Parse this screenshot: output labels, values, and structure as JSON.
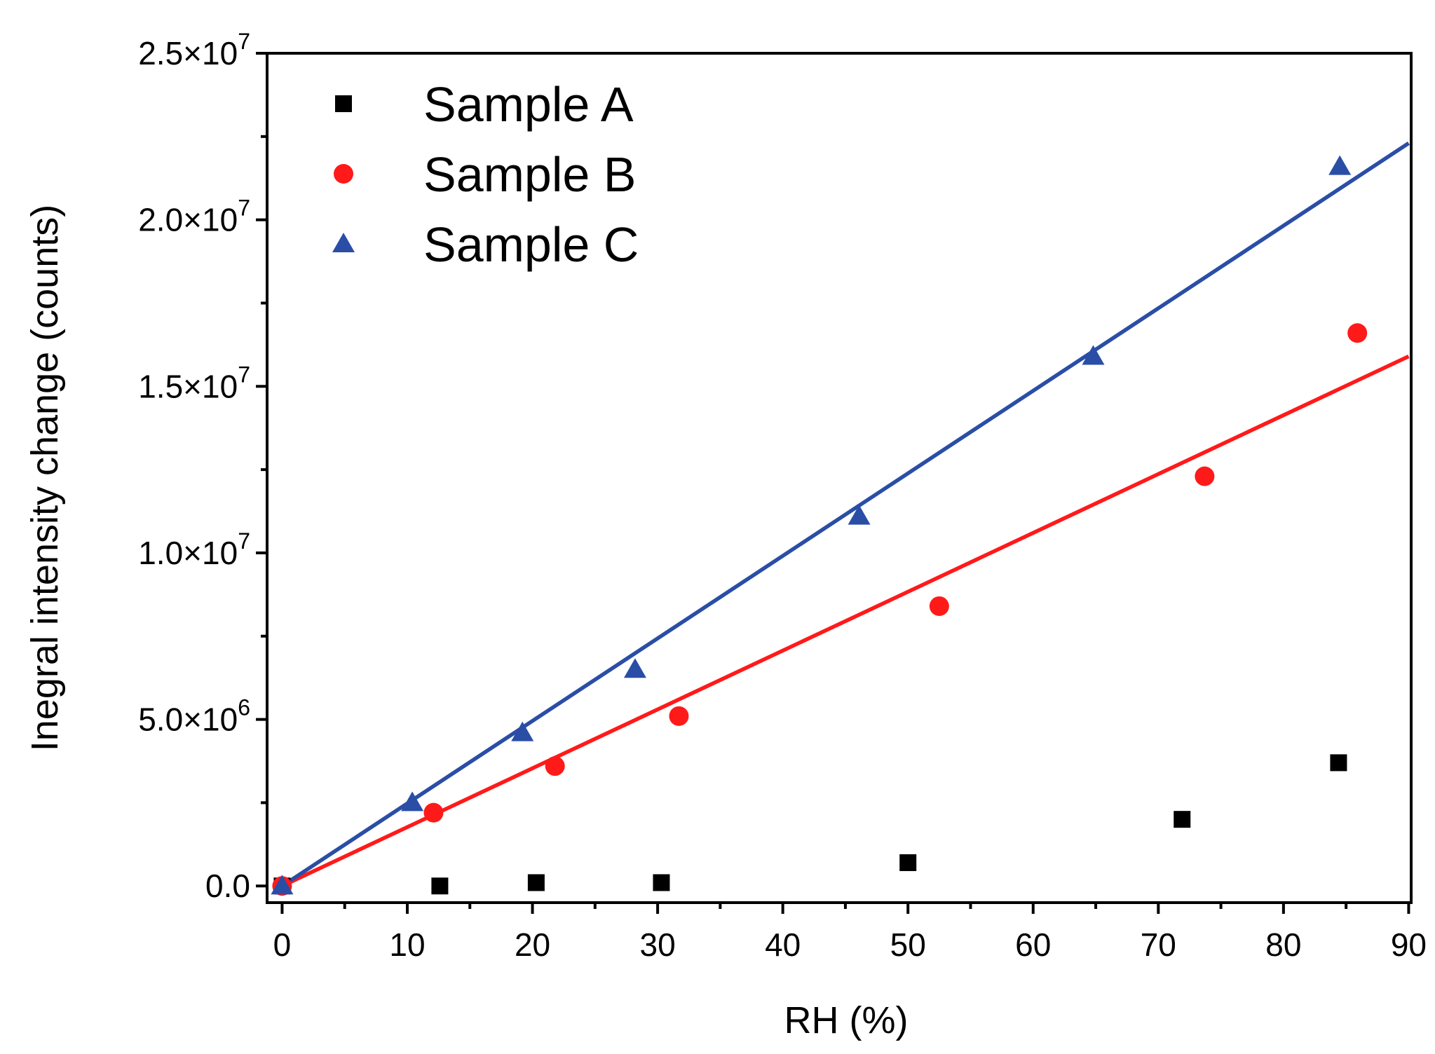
{
  "chart_data": {
    "type": "scatter",
    "title": "",
    "xlabel": "RH (%)",
    "ylabel": "Inegral intensity change (counts)",
    "xlim": [
      -1.2,
      90.2
    ],
    "ylim": [
      -500000,
      25000000
    ],
    "x_ticks": [
      0,
      10,
      20,
      30,
      40,
      50,
      60,
      70,
      80,
      90
    ],
    "x_tick_labels": [
      "0",
      "10",
      "20",
      "30",
      "40",
      "50",
      "60",
      "70",
      "80",
      "90"
    ],
    "y_ticks": [
      0,
      5000000,
      10000000,
      15000000,
      20000000,
      25000000
    ],
    "y_tick_labels": [
      {
        "mantissa": "0.0",
        "exponent": ""
      },
      {
        "mantissa": "5.0×10",
        "exponent": "6"
      },
      {
        "mantissa": "1.0×10",
        "exponent": "7"
      },
      {
        "mantissa": "1.5×10",
        "exponent": "7"
      },
      {
        "mantissa": "2.0×10",
        "exponent": "7"
      },
      {
        "mantissa": "2.5×10",
        "exponent": "7"
      }
    ],
    "legend_position": "top-left",
    "series": [
      {
        "name": "Sample A",
        "marker": "square",
        "color": "#000000",
        "x": [
          0,
          12.6,
          20.3,
          30.3,
          50.0,
          71.9,
          84.4
        ],
        "y": [
          0,
          0,
          100000,
          100000,
          700000,
          2000000,
          3700000
        ]
      },
      {
        "name": "Sample B",
        "marker": "circle",
        "color": "#ff1a1a",
        "x": [
          0,
          12.1,
          21.8,
          31.7,
          52.5,
          73.7,
          85.9
        ],
        "y": [
          0,
          2200000,
          3600000,
          5100000,
          8400000,
          12300000,
          16600000
        ],
        "fit": {
          "x": [
            0,
            90
          ],
          "y": [
            0,
            15900000
          ],
          "color": "#ff1a1a"
        }
      },
      {
        "name": "Sample C",
        "marker": "triangle",
        "color": "#2a4ea6",
        "x": [
          0,
          10.4,
          19.2,
          28.2,
          46.1,
          64.8,
          84.5
        ],
        "y": [
          0,
          2500000,
          4600000,
          6500000,
          11100000,
          15900000,
          21600000
        ],
        "fit": {
          "x": [
            0,
            90
          ],
          "y": [
            0,
            22300000
          ],
          "color": "#2a4ea6"
        }
      }
    ]
  }
}
